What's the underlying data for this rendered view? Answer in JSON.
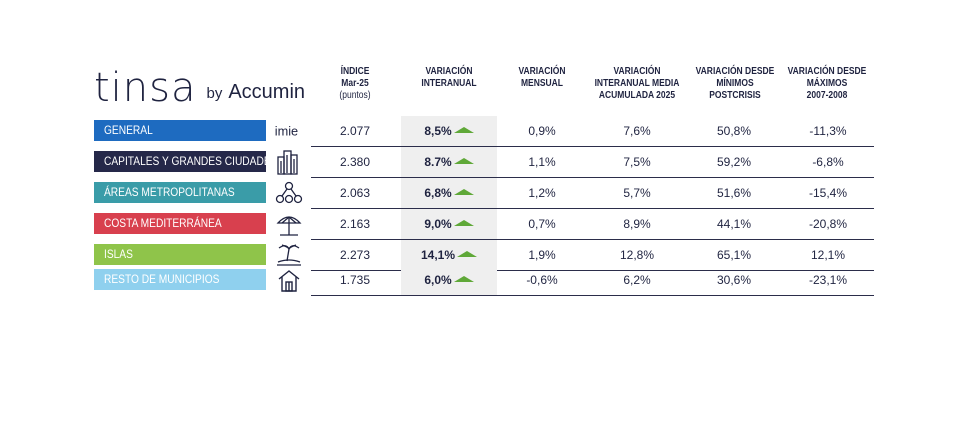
{
  "logo": {
    "main": "tinsa",
    "by": "by",
    "brand": "Accumin"
  },
  "headers": [
    {
      "title": "ÍNDICE",
      "line2": "Mar-25",
      "sub": "(puntos)"
    },
    {
      "title": "VARIACIÓN",
      "line2": "INTERANUAL",
      "sub": ""
    },
    {
      "title": "VARIACIÓN",
      "line2": "MENSUAL",
      "sub": ""
    },
    {
      "title": "VARIACIÓN",
      "line2": "INTERANUAL MEDIA",
      "line3": "ACUMULADA 2025"
    },
    {
      "title": "VARIACIÓN DESDE",
      "line2": "MÍNIMOS",
      "line3": "POSTCRISIS"
    },
    {
      "title": "VARIACIÓN DESDE",
      "line2": "MÁXIMOS",
      "line3": "2007-2008"
    }
  ],
  "rows": [
    {
      "label": "GENERAL",
      "color": "#1e6bc0",
      "icon": "imie-logo",
      "icon_text": "imie",
      "index": "2.077",
      "interanual": "8,5%",
      "mensual": "0,9%",
      "acumulada": "7,6%",
      "minimos": "50,8%",
      "maximos": "-11,3%"
    },
    {
      "label": "CAPITALES Y GRANDES CIUDADES",
      "color": "#252849",
      "icon": "buildings-icon",
      "index": "2.380",
      "interanual": "8.7%",
      "mensual": "1,1%",
      "acumulada": "7,5%",
      "minimos": "59,2%",
      "maximos": "-6,8%"
    },
    {
      "label": "ÁREAS METROPOLITANAS",
      "color": "#3a9ca8",
      "icon": "network-icon",
      "index": "2.063",
      "interanual": "6,8%",
      "mensual": "1,2%",
      "acumulada": "5,7%",
      "minimos": "51,6%",
      "maximos": "-15,4%"
    },
    {
      "label": "COSTA MEDITERRÁNEA",
      "color": "#d8404e",
      "icon": "beach-umbrella-icon",
      "index": "2.163",
      "interanual": "9,0%",
      "mensual": "0,7%",
      "acumulada": "8,9%",
      "minimos": "44,1%",
      "maximos": "-20,8%"
    },
    {
      "label": "ISLAS",
      "color": "#8fc44a",
      "icon": "island-icon",
      "index": "2.273",
      "interanual": "14,1%",
      "mensual": "1,9%",
      "acumulada": "12,8%",
      "minimos": "65,1%",
      "maximos": "12,1%"
    },
    {
      "label": "RESTO DE MUNICIPIOS",
      "color": "#8fd0ee",
      "icon": "house-icon",
      "index": "1.735",
      "interanual": "6,0%",
      "mensual": "-0,6%",
      "acumulada": "6,2%",
      "minimos": "30,6%",
      "maximos": "-23,1%"
    }
  ],
  "trend_color": "#5fa838"
}
